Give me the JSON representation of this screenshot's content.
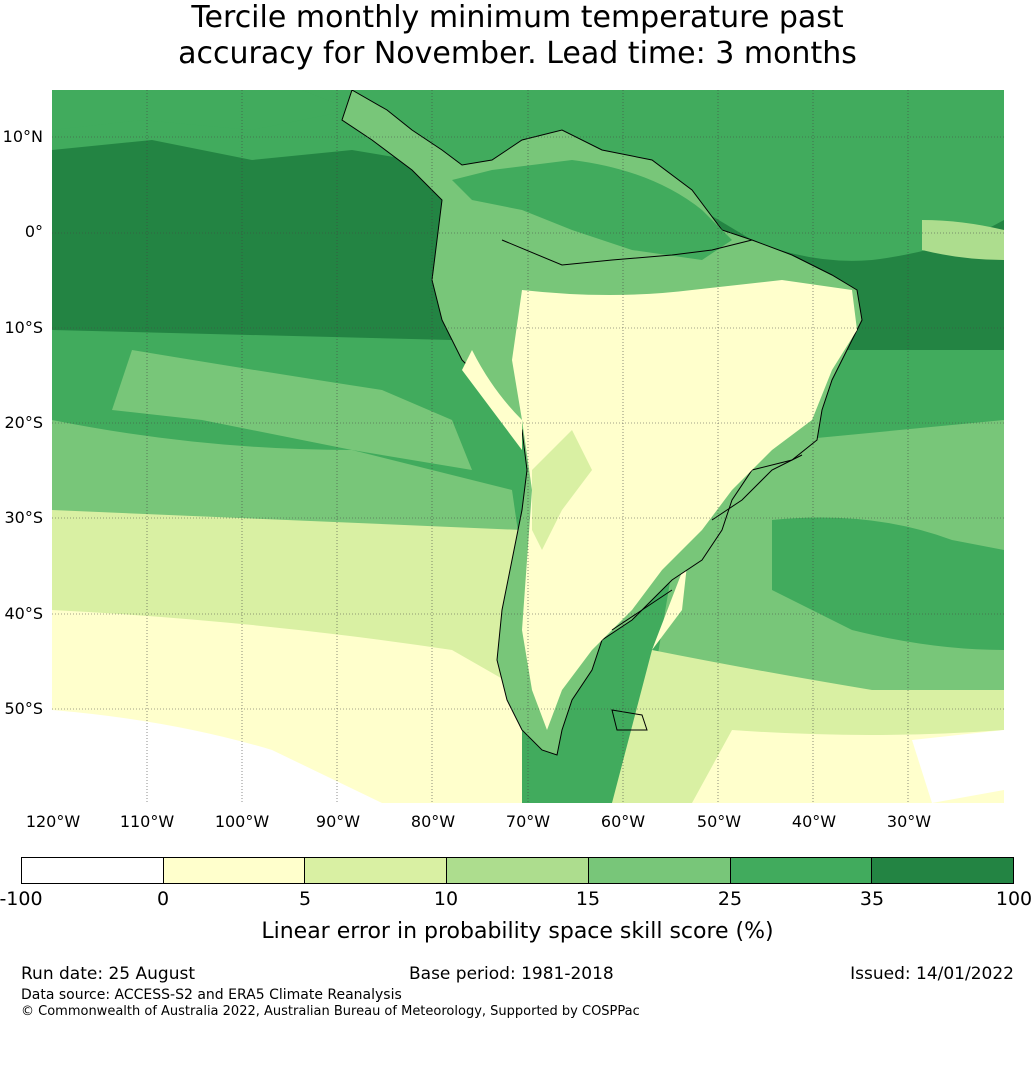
{
  "title": {
    "line1": "Tercile monthly minimum temperature past",
    "line2": "accuracy for November. Lead time: 3 months"
  },
  "map": {
    "region": "South America",
    "lat_labels": [
      "10°N",
      "0°",
      "10°S",
      "20°S",
      "30°S",
      "40°S",
      "50°S"
    ],
    "lon_labels": [
      "120°W",
      "110°W",
      "100°W",
      "90°W",
      "80°W",
      "70°W",
      "60°W",
      "50°W",
      "40°W",
      "30°W"
    ],
    "gridlines": "dotted"
  },
  "colorbar": {
    "ticks": [
      "-100",
      "0",
      "5",
      "10",
      "15",
      "25",
      "35",
      "100"
    ],
    "colors": [
      "#ffffff",
      "#ffffcc",
      "#d9f0a3",
      "#addd8e",
      "#78c679",
      "#41ab5d",
      "#238443"
    ],
    "label": "Linear error in probability space skill score (%)"
  },
  "footer": {
    "run_date": "Run date: 25 August",
    "base_period": "Base period: 1981-2018",
    "issued": "Issued: 14/01/2022",
    "data_source": "Data source: ACCESS-S2 and ERA5 Climate Reanalysis",
    "copyright": "© Commonwealth of Australia 2022, Australian Bureau of Meteorology, Supported by COSPPac"
  }
}
